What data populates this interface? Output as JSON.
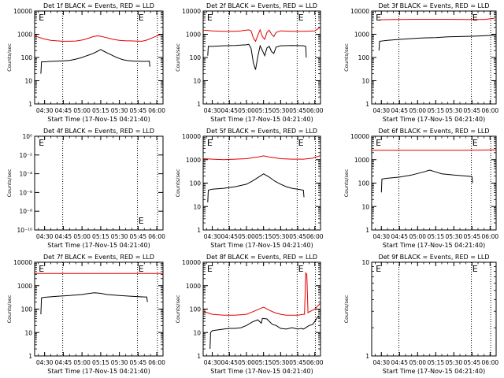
{
  "chart_data": [
    {
      "type": "line",
      "title": "Det 1f BLACK = Events, RED = LLD",
      "ylabel": "Counts/sec",
      "xlabel": "Start Time (17-Nov-15 04:21:40)",
      "x_tick_labels": [
        "04:30",
        "04:45",
        "05:00",
        "05:15",
        "05:30",
        "05:45",
        "06:00"
      ],
      "y_scale": "log",
      "y_tick_labels": [
        "1",
        "10",
        "100",
        "1000",
        "10000"
      ],
      "ylim": [
        1,
        10000
      ],
      "x_minutes_of_day": [
        270,
        285,
        300,
        315,
        330,
        345,
        360
      ],
      "xlim": [
        262,
        365
      ],
      "marker_text": [
        "E",
        "E"
      ],
      "series": [
        {
          "color": "red",
          "x": [
            262,
            265,
            270,
            275,
            280,
            285,
            290,
            295,
            300,
            303,
            306,
            309,
            312,
            315,
            318,
            321,
            324,
            327,
            330,
            333,
            336,
            339,
            342,
            345,
            348,
            351,
            354,
            357,
            360,
            363
          ],
          "values": [
            900,
            750,
            620,
            550,
            520,
            500,
            500,
            510,
            560,
            620,
            700,
            800,
            850,
            820,
            750,
            680,
            620,
            580,
            550,
            530,
            520,
            520,
            510,
            505,
            500,
            540,
            620,
            720,
            850,
            950
          ]
        },
        {
          "color": "black",
          "x": [
            267,
            267.5,
            270,
            275,
            280,
            285,
            290,
            295,
            300,
            303,
            306,
            309,
            312,
            315,
            318,
            321,
            324,
            327,
            330,
            333,
            336,
            339,
            342,
            345,
            348,
            351,
            354,
            354.5
          ],
          "values": [
            20,
            65,
            65,
            68,
            70,
            72,
            75,
            85,
            100,
            115,
            130,
            150,
            180,
            220,
            180,
            150,
            125,
            105,
            90,
            80,
            75,
            72,
            70,
            70,
            68,
            68,
            70,
            40
          ]
        }
      ]
    },
    {
      "type": "line",
      "title": "Det 2f BLACK = Events, RED = LLD",
      "ylabel": "Counts/sec",
      "xlabel": "Start Time (17-Nov-15 04:21:40)",
      "x_tick_labels": [
        "04:30",
        "04:45",
        "05:00",
        "05:15",
        "05:30",
        "05:45",
        "06:00"
      ],
      "y_scale": "log",
      "y_tick_labels": [
        "1",
        "10",
        "100",
        "1000",
        "10000"
      ],
      "ylim": [
        1,
        10000
      ],
      "x_minutes_of_day": [
        270,
        285,
        300,
        315,
        330,
        345,
        360
      ],
      "xlim": [
        262,
        365
      ],
      "marker_text": [
        "E",
        "E"
      ],
      "series": [
        {
          "color": "red",
          "x": [
            262,
            270,
            280,
            290,
            295,
            300,
            302,
            304,
            306,
            308,
            310,
            312,
            314,
            316,
            318,
            320,
            322,
            324,
            326,
            330,
            340,
            350,
            360,
            365
          ],
          "values": [
            1500,
            1400,
            1350,
            1350,
            1400,
            1500,
            1550,
            1400,
            700,
            500,
            900,
            1550,
            800,
            600,
            1200,
            1500,
            1000,
            800,
            1200,
            1400,
            1350,
            1350,
            1400,
            2000
          ]
        },
        {
          "color": "black",
          "x": [
            266,
            266.5,
            270,
            280,
            290,
            295,
            300,
            302,
            304,
            306,
            308,
            310,
            312,
            314,
            316,
            318,
            320,
            322,
            324,
            326,
            330,
            340,
            350,
            352,
            352.5
          ],
          "values": [
            120,
            300,
            300,
            320,
            330,
            340,
            350,
            370,
            250,
            60,
            30,
            110,
            320,
            200,
            120,
            260,
            300,
            180,
            150,
            280,
            320,
            330,
            320,
            300,
            100
          ]
        }
      ]
    },
    {
      "type": "line",
      "title": "Det 3f BLACK = Events, RED = LLD",
      "ylabel": "Counts/sec",
      "xlabel": "Start Time (17-Nov-15 04:21:40)",
      "x_tick_labels": [
        "04:30",
        "04:45",
        "05:00",
        "05:15",
        "05:30",
        "05:45",
        "06:00"
      ],
      "y_scale": "log",
      "y_tick_labels": [
        "1",
        "10",
        "100",
        "1000",
        "10000"
      ],
      "ylim": [
        1,
        10000
      ],
      "x_minutes_of_day": [
        270,
        285,
        300,
        315,
        330,
        345,
        360
      ],
      "xlim": [
        262,
        365
      ],
      "marker_text": [
        "E",
        "E"
      ],
      "series": [
        {
          "color": "red",
          "x": [
            268,
            280,
            300,
            320,
            340,
            355,
            363
          ],
          "values": [
            4200,
            4300,
            4400,
            4400,
            4300,
            4300,
            4800
          ]
        },
        {
          "color": "black",
          "x": [
            268,
            268.5,
            275,
            285,
            295,
            305,
            315,
            325,
            335,
            345,
            352,
            358,
            363
          ],
          "values": [
            200,
            500,
            550,
            600,
            650,
            700,
            720,
            780,
            800,
            820,
            850,
            880,
            900
          ]
        }
      ]
    },
    {
      "type": "line",
      "title": "Det 4f BLACK = Events, RED = LLD",
      "ylabel": "Counts/sec",
      "xlabel": "Start Time (17-Nov-15 04:21:40)",
      "x_tick_labels": [
        "04:30",
        "04:45",
        "05:00",
        "05:15",
        "05:30",
        "05:45",
        "06:00"
      ],
      "y_scale": "log",
      "y_tick_labels": [
        "10⁻¹⁰",
        "10⁻⁸",
        "10⁻⁶",
        "10⁻⁴",
        "10⁻²",
        "10⁰"
      ],
      "ylim_exponents": [
        -10,
        0
      ],
      "x_minutes_of_day": [
        270,
        285,
        300,
        315,
        330,
        345,
        360
      ],
      "xlim": [
        262,
        365
      ],
      "marker_text": [
        "E",
        "E"
      ],
      "series": []
    },
    {
      "type": "line",
      "title": "Det 5f BLACK = Events, RED = LLD",
      "ylabel": "Counts/sec",
      "xlabel": "Start Time (17-Nov-15 04:21:40)",
      "x_tick_labels": [
        "04:30",
        "04:45",
        "05:00",
        "05:15",
        "05:30",
        "05:45",
        "06:00"
      ],
      "y_scale": "log",
      "y_tick_labels": [
        "1",
        "10",
        "100",
        "1000",
        "10000"
      ],
      "ylim": [
        1,
        10000
      ],
      "x_minutes_of_day": [
        270,
        285,
        300,
        315,
        330,
        345,
        360
      ],
      "xlim": [
        262,
        365
      ],
      "marker_text": [
        "E",
        "E"
      ],
      "series": [
        {
          "color": "red",
          "x": [
            262,
            270,
            280,
            290,
            300,
            305,
            310,
            315,
            320,
            330,
            340,
            350,
            358,
            365
          ],
          "values": [
            1100,
            1050,
            1000,
            1050,
            1100,
            1200,
            1300,
            1450,
            1300,
            1100,
            1050,
            1050,
            1150,
            1500
          ]
        },
        {
          "color": "black",
          "x": [
            266,
            266.5,
            270,
            280,
            290,
            300,
            305,
            310,
            315,
            320,
            325,
            330,
            335,
            340,
            345,
            350,
            350.5
          ],
          "values": [
            15,
            50,
            55,
            60,
            70,
            90,
            120,
            170,
            250,
            180,
            120,
            90,
            70,
            60,
            55,
            50,
            25
          ]
        }
      ]
    },
    {
      "type": "line",
      "title": "Det 6f BLACK = Events, RED = LLD",
      "ylabel": "Counts/sec",
      "xlabel": "Start Time (17-Nov-15 04:21:40)",
      "x_tick_labels": [
        "04:30",
        "04:45",
        "05:00",
        "05:15",
        "05:30",
        "05:45",
        "06:00"
      ],
      "y_scale": "log",
      "y_tick_labels": [
        "1",
        "10",
        "100",
        "1000",
        "10000"
      ],
      "ylim": [
        1,
        10000
      ],
      "x_minutes_of_day": [
        270,
        285,
        300,
        315,
        330,
        345,
        360
      ],
      "xlim": [
        262,
        365
      ],
      "marker_text": [
        "E",
        "E"
      ],
      "series": [
        {
          "color": "red",
          "x": [
            262,
            280,
            300,
            320,
            340,
            365
          ],
          "values": [
            2500,
            2500,
            2500,
            2500,
            2500,
            2600
          ]
        },
        {
          "color": "black",
          "x": [
            270,
            270.5,
            275,
            285,
            295,
            305,
            310,
            315,
            320,
            330,
            340,
            345,
            345.5
          ],
          "values": [
            40,
            150,
            160,
            180,
            220,
            300,
            360,
            300,
            250,
            220,
            200,
            190,
            100
          ]
        }
      ]
    },
    {
      "type": "line",
      "title": "Det 7f BLACK = Events, RED = LLD",
      "ylabel": "Counts/sec",
      "xlabel": "Start Time (17-Nov-15 04:21:40)",
      "x_tick_labels": [
        "04:30",
        "04:45",
        "05:00",
        "05:15",
        "05:30",
        "05:45",
        "06:00"
      ],
      "y_scale": "log",
      "y_tick_labels": [
        "1",
        "10",
        "100",
        "1000",
        "10000"
      ],
      "ylim": [
        1,
        10000
      ],
      "x_minutes_of_day": [
        270,
        285,
        300,
        315,
        330,
        345,
        360
      ],
      "xlim": [
        262,
        365
      ],
      "marker_text": [
        "E",
        "E"
      ],
      "series": [
        {
          "color": "red",
          "x": [
            262,
            280,
            300,
            320,
            340,
            365
          ],
          "values": [
            3300,
            3300,
            3300,
            3300,
            3300,
            3300
          ]
        },
        {
          "color": "black",
          "x": [
            267,
            267.5,
            270,
            280,
            290,
            300,
            305,
            310,
            315,
            320,
            330,
            340,
            350,
            352,
            352.5
          ],
          "values": [
            60,
            300,
            320,
            350,
            380,
            420,
            460,
            500,
            470,
            420,
            380,
            350,
            330,
            330,
            200
          ]
        }
      ]
    },
    {
      "type": "line",
      "title": "Det 8f BLACK = Events, RED = LLD",
      "ylabel": "Counts/sec",
      "xlabel": "Start Time (17-Nov-15 04:21:40)",
      "x_tick_labels": [
        "04:30",
        "04:45",
        "05:00",
        "05:15",
        "05:30",
        "05:45",
        "06:00"
      ],
      "y_scale": "log",
      "y_tick_labels": [
        "1",
        "10",
        "100",
        "1000",
        "10000"
      ],
      "ylim": [
        1,
        10000
      ],
      "x_minutes_of_day": [
        270,
        285,
        300,
        315,
        330,
        345,
        360
      ],
      "xlim": [
        262,
        365
      ],
      "marker_text": [
        "E",
        "E"
      ],
      "series": [
        {
          "color": "red",
          "x": [
            262,
            270,
            280,
            290,
            300,
            305,
            310,
            315,
            320,
            325,
            330,
            335,
            340,
            345,
            350,
            351,
            352,
            353,
            354,
            355,
            360,
            365
          ],
          "values": [
            80,
            60,
            55,
            55,
            60,
            75,
            95,
            120,
            90,
            70,
            60,
            55,
            55,
            55,
            60,
            60,
            3500,
            3000,
            70,
            75,
            100,
            180
          ]
        },
        {
          "color": "black",
          "x": [
            268,
            268.5,
            270,
            275,
            280,
            285,
            290,
            295,
            300,
            305,
            310,
            313,
            314,
            318,
            320,
            323,
            326,
            330,
            335,
            340,
            345,
            348,
            350,
            352,
            355,
            358,
            360,
            363,
            364
          ],
          "values": [
            2,
            10,
            12,
            13,
            14,
            15,
            15,
            16,
            20,
            28,
            35,
            25,
            40,
            38,
            30,
            22,
            20,
            15,
            14,
            16,
            14,
            15,
            14,
            16,
            20,
            22,
            30,
            50,
            40
          ]
        }
      ]
    },
    {
      "type": "line",
      "title": "Det 9f BLACK = Events, RED = LLD",
      "ylabel": "Counts/sec",
      "xlabel": "Start Time (17-Nov-15 04:21:40)",
      "x_tick_labels": [
        "04:30",
        "04:45",
        "05:00",
        "05:15",
        "05:30",
        "05:45",
        "06:00"
      ],
      "y_scale": "log",
      "y_tick_labels": [
        "1",
        "10"
      ],
      "ylim": [
        1,
        10
      ],
      "x_minutes_of_day": [
        270,
        285,
        300,
        315,
        330,
        345,
        360
      ],
      "xlim": [
        262,
        365
      ],
      "marker_text": [
        "E",
        "E"
      ],
      "series": []
    }
  ]
}
